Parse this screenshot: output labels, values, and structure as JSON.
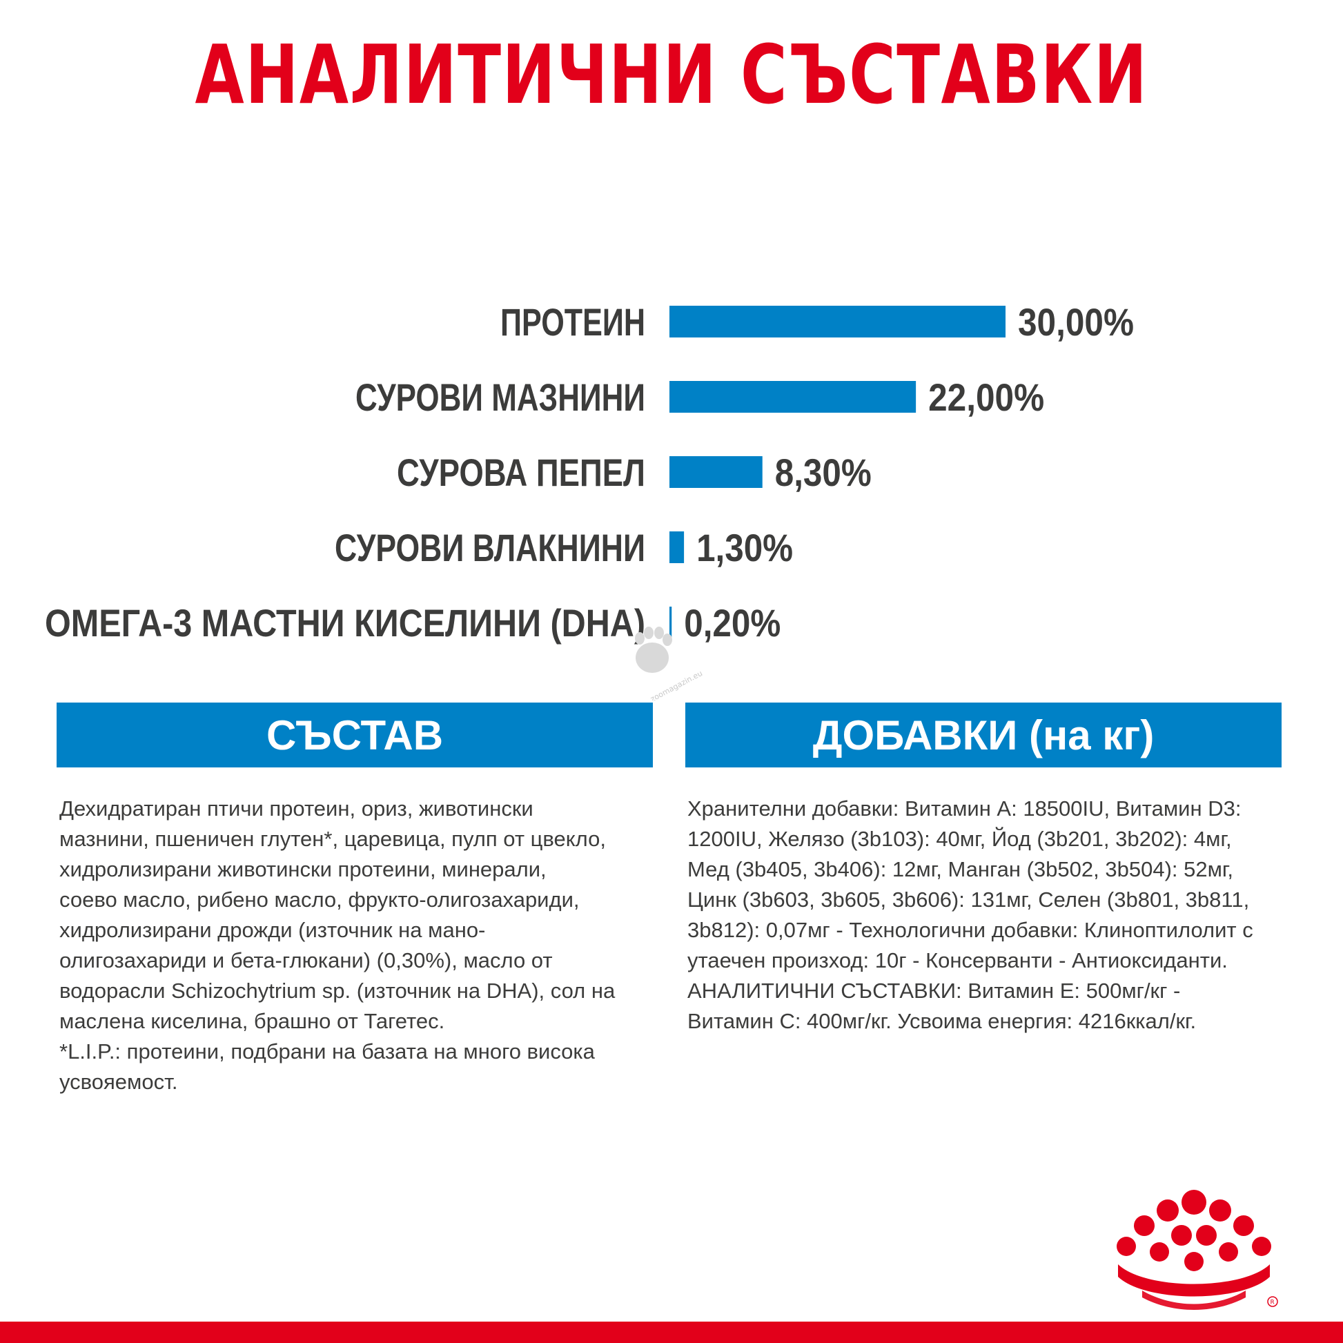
{
  "title": "АНАЛИТИЧНИ СЪСТАВКИ",
  "chart_data": {
    "type": "bar",
    "orientation": "horizontal",
    "categories": [
      "ПРОТЕИН",
      "СУРОВИ МАЗНИНИ",
      "СУРОВА ПЕПЕЛ",
      "СУРОВИ ВЛАКНИНИ",
      "ОМЕГА-3 МАСТНИ КИСЕЛИНИ (DHA)"
    ],
    "values": [
      30.0,
      22.0,
      8.3,
      1.3,
      0.2
    ],
    "value_labels": [
      "30,00%",
      "22,00%",
      "8,30%",
      "1,30%",
      "0,20%"
    ],
    "unit": "%",
    "xlim": [
      0,
      30
    ],
    "grid": false,
    "legend": "none",
    "bar_color": "#0081c6"
  },
  "sections": {
    "composition": {
      "title": "СЪСТАВ",
      "text": "Дехидратиран птичи протеин, ориз, животински\nмазнини, пшеничен глутен*, царевица, пулп от цвекло,\nхидролизирани животински протеини, минерали,\nсоево масло, рибено масло, фрукто-олигозахариди,\nхидролизирани дрожди (източник на мано-\nолигозахариди и бета-глюкани) (0,30%), масло от\nводорасли Schizochytrium sp. (източник на DHA), сол на\nмаслена киселина, брашно от Тагетес.\n*L.I.P.: протеини, подбрани на базата на много висока\nусвояемост."
    },
    "additives": {
      "title": "ДОБАВКИ (на кг)",
      "text": "Хранителни добавки: Витамин A: 18500IU, Витамин D3:\n1200IU, Желязо (3b103): 40мг, Йод (3b201, 3b202): 4мг,\nМед (3b405, 3b406): 12мг, Манган (3b502, 3b504): 52мг,\nЦинк (3b603, 3b605, 3b606): 131мг, Селен (3b801, 3b811,\n3b812): 0,07мг - Технологични добавки: Клиноптилолит с\nутаечен произход: 10г - Консерванти - Антиоксиданти.\nАНАЛИТИЧНИ СЪСТАВКИ: Витамин E: 500мг/кг -\nВитамин C: 400мг/кг. Усвоима енергия: 4216ккал/кг."
    }
  },
  "watermark": "zoomagazin.eu",
  "colors": {
    "title_red": "#e2001a",
    "bar_blue": "#0081c6",
    "text_gray": "#3c3c3b",
    "header_blue": "#0081c6"
  },
  "icons": {
    "watermark": "paw-icon",
    "logo": "royal-canin-crown-icon"
  }
}
